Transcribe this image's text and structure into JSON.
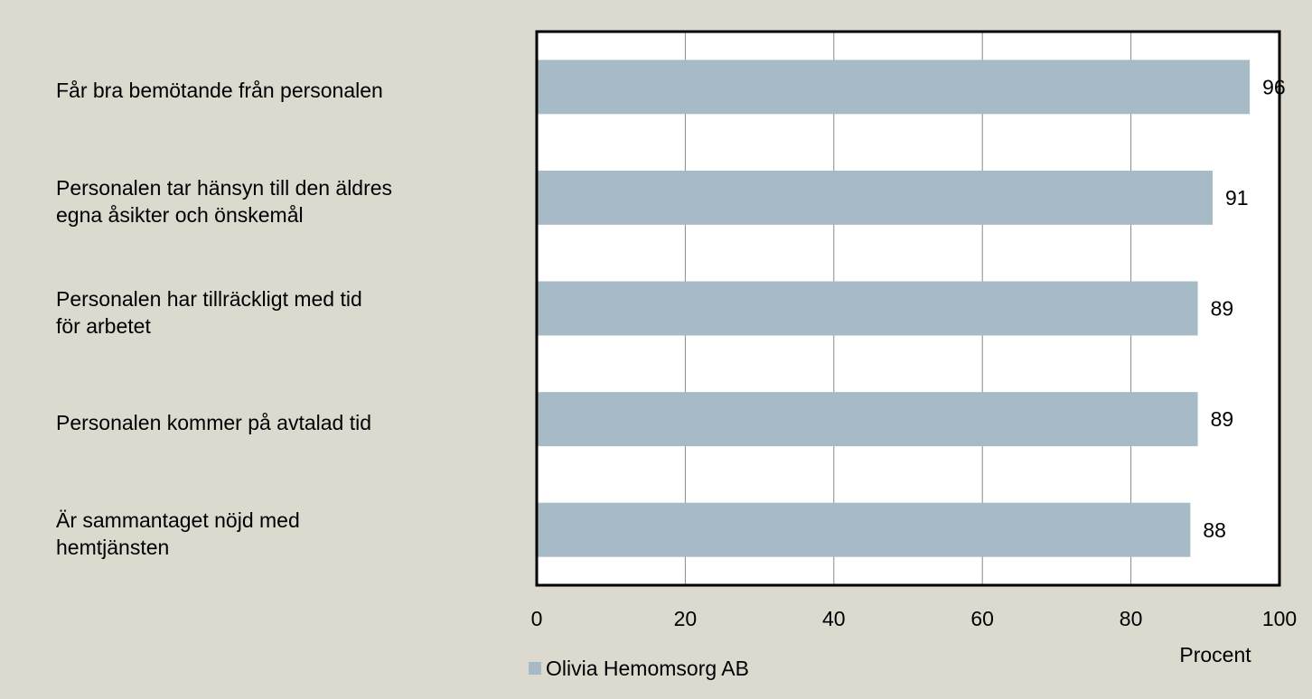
{
  "chart_data": {
    "type": "barh",
    "categories": [
      "Får bra bemötande från personalen",
      "Personalen tar hänsyn till den äldres\negna åsikter och önskemål",
      "Personalen har tillräckligt med tid\nför arbetet",
      "Personalen kommer på avtalad tid",
      "Är sammantaget nöjd med\nhemtjänsten"
    ],
    "series": [
      {
        "name": "Olivia Hemomsorg AB",
        "color": "#a7bbc7",
        "values": [
          96,
          91,
          89,
          89,
          88
        ]
      }
    ],
    "xlim": [
      0,
      100
    ],
    "xticks": [
      0,
      20,
      40,
      60,
      80,
      100
    ],
    "grid": true,
    "xlabel": "Procent",
    "legend": "bottom-left"
  }
}
